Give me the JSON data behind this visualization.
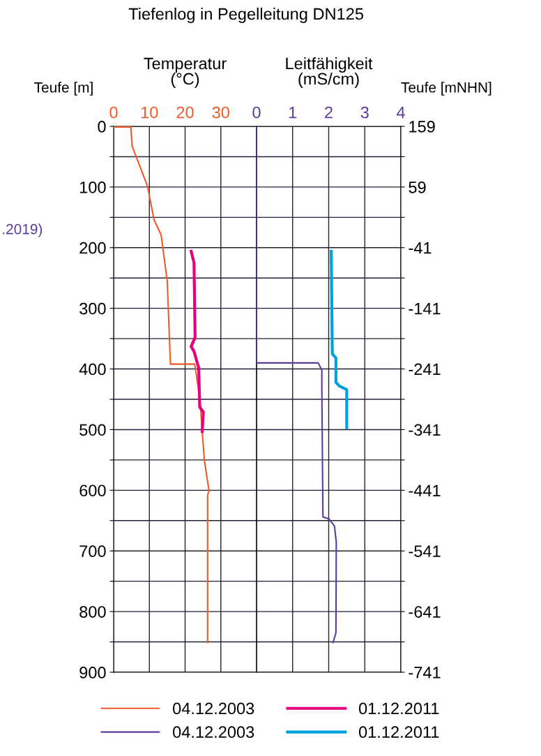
{
  "chart_data": [
    {
      "type": "line",
      "title": "Tiefenlog in Pegelleitung DN125",
      "xlabel": "Temperatur\n(°C)",
      "ylabel": "Teufe [m]",
      "xlim": [
        0,
        40
      ],
      "xticks": [
        0,
        10,
        20,
        30
      ],
      "ylim": [
        900,
        0
      ],
      "yticks": [
        0,
        {
          "value": 50,
          "label": null
        },
        100,
        {
          "value": 150,
          "label": null
        },
        200,
        {
          "value": 250,
          "label": null
        },
        300,
        {
          "value": 350,
          "label": null
        },
        400,
        {
          "value": 450,
          "label": null
        },
        500,
        {
          "value": 550,
          "label": null
        },
        600,
        {
          "value": 650,
          "label": null
        },
        700,
        {
          "value": 750,
          "label": null
        },
        800,
        {
          "value": 850,
          "label": null
        },
        900
      ],
      "grid": true,
      "legend": "bottom",
      "annotations": [
        ".2019)"
      ],
      "series": [
        {
          "name": "04.12.2003",
          "color": "#f05a28",
          "x": [
            0,
            4.8,
            5.2,
            9.5,
            11.3,
            13.3,
            15.0,
            15.9,
            22.7,
            24.1,
            25.4,
            26.7,
            26.3,
            26.3
          ],
          "values": [
            1,
            1,
            33,
            99,
            154,
            179,
            255,
            392,
            392,
            448,
            551,
            601,
            608,
            851
          ]
        },
        {
          "name": "01.12.2011",
          "color": "#e6007e",
          "x": [
            21.7,
            22.5,
            22.8,
            21.7,
            22.5,
            23.8,
            24.1,
            25.1,
            24.8
          ],
          "values": [
            206,
            225,
            348,
            363,
            371,
            398,
            463,
            471,
            503
          ]
        }
      ]
    },
    {
      "type": "line",
      "xlabel": "Leitfähigkeit\n(mS/cm)",
      "ylabel": "Teufe [mNHN]",
      "xlim": [
        0,
        4
      ],
      "xticks": [
        0,
        1,
        2,
        3,
        4
      ],
      "ylim": [
        -741,
        159
      ],
      "yticks": [
        159,
        {
          "value": 109,
          "label": null
        },
        59,
        {
          "value": 9,
          "label": null
        },
        -41,
        {
          "value": -91,
          "label": null
        },
        -141,
        {
          "value": -191,
          "label": null
        },
        -241,
        {
          "value": -291,
          "label": null
        },
        -341,
        {
          "value": -391,
          "label": null
        },
        -441,
        {
          "value": -491,
          "label": null
        },
        -541,
        {
          "value": -591,
          "label": null
        },
        -641,
        {
          "value": -691,
          "label": null
        },
        -741
      ],
      "grid": true,
      "legend": "bottom",
      "series": [
        {
          "name": "04.12.2003",
          "color": "#5a3c9c",
          "x": [
            0,
            0,
            1.71,
            1.81,
            1.81,
            1.84,
            2.0,
            2.16,
            2.21,
            2.2,
            2.12
          ],
          "values": [
            159,
            -231,
            -231,
            -243,
            -278,
            -485,
            -488,
            -500,
            -527,
            -676,
            -692
          ]
        },
        {
          "name": "01.12.2011",
          "color": "#00a0dc",
          "x": [
            2.07,
            2.1,
            2.2,
            2.2,
            2.29,
            2.5,
            2.5
          ],
          "values": [
            -47,
            -216,
            -223,
            -263,
            -269,
            -275,
            -338
          ]
        }
      ]
    }
  ]
}
